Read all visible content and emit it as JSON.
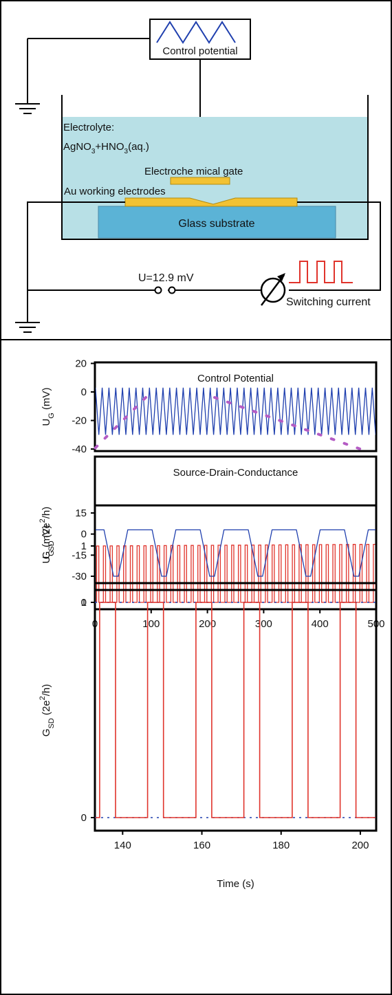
{
  "setup": {
    "control_label": "Control potential",
    "electrolyte_label": "Electrolyte:",
    "electrolyte_formula": {
      "a": "AgNO",
      "a_sub": "3",
      "b": "+HNO",
      "b_sub": "3",
      "c": "(aq.)"
    },
    "gate_label": "Electroche mical gate",
    "electrodes_label": "Au working electrodes",
    "substrate_label": "Glass substrate",
    "voltage_label": "U=12.9 mV",
    "switching_label": "Switching current",
    "colors": {
      "electrolyte": "#b8e0e6",
      "substrate": "#5bb3d6",
      "gold": "#f2c233",
      "wave_blue": "#1f3fae",
      "wave_red": "#e0332b"
    }
  },
  "chart_data": [
    {
      "type": "line",
      "ylabel": "U_G (mV)",
      "title": "Control Potential",
      "yticks": [
        "20",
        "0",
        "-20",
        "-40"
      ],
      "ylim": [
        -40,
        20
      ],
      "xlim": [
        0,
        500
      ],
      "series": [
        {
          "waveform": "triangular",
          "min": -30,
          "max": 3,
          "period_s": 12,
          "color": "#1f3fae"
        }
      ]
    },
    {
      "type": "line",
      "ylabel": "G_SD (2e²/h)",
      "title": "Source-Drain-Conductance",
      "yticks": [
        "1",
        "0"
      ],
      "ylim": [
        -0.15,
        1.45
      ],
      "xlim": [
        0,
        500
      ],
      "xticks": [
        "0",
        "100",
        "200",
        "300",
        "400",
        "500"
      ],
      "series": [
        {
          "waveform": "square",
          "low": 0,
          "high": 1,
          "period_s": 12,
          "color": "#e0332b"
        }
      ]
    },
    {
      "type": "line",
      "ylabel": "U_G (mV)",
      "yticks": [
        "15",
        "0",
        "-15",
        "-30"
      ],
      "ylim": [
        -36,
        15
      ],
      "xlim": [
        133,
        204
      ],
      "series": [
        {
          "waveform": "trapezoidal",
          "min": -30,
          "max": 3,
          "color": "#1f3fae"
        }
      ]
    },
    {
      "type": "line",
      "ylabel": "G_SD (2e²/h)",
      "xlabel": "Time (s)",
      "yticks": [
        "1",
        "0"
      ],
      "ylim": [
        -0.15,
        1.45
      ],
      "xlim": [
        133,
        204
      ],
      "xticks": [
        "140",
        "160",
        "180",
        "200"
      ],
      "reference_lines": [
        0,
        1
      ],
      "pulses": [
        [
          134.2,
          138.2
        ],
        [
          146.3,
          150.3
        ],
        [
          158.5,
          162.5
        ],
        [
          170.6,
          174.6
        ],
        [
          182.8,
          186.8
        ],
        [
          194.9,
          198.9
        ]
      ],
      "series": [
        {
          "waveform": "square",
          "low": 0,
          "high": 1,
          "color": "#e0332b"
        }
      ]
    }
  ]
}
